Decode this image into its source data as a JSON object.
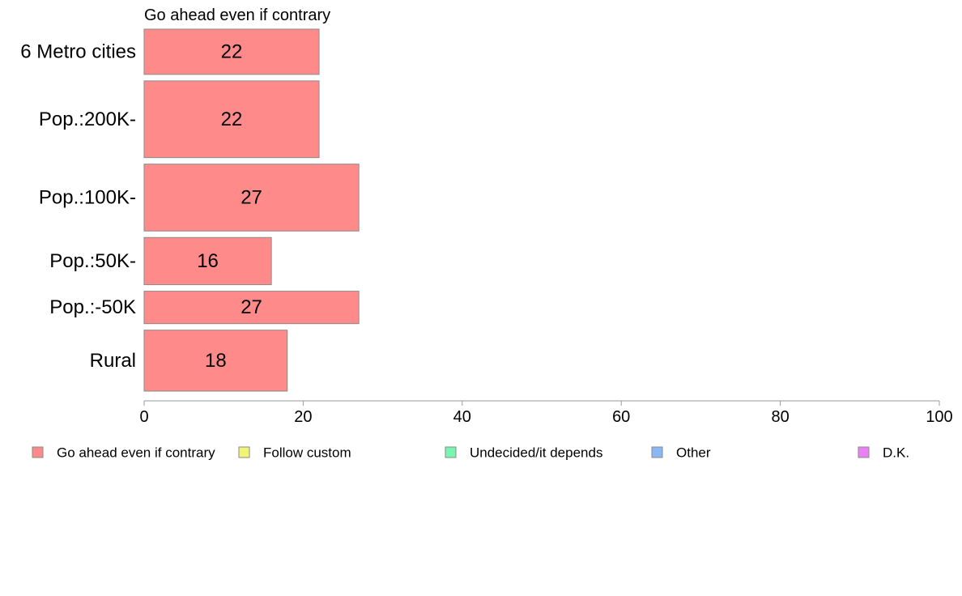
{
  "chart_data": {
    "type": "bar",
    "orientation": "horizontal",
    "title": "Go ahead even if contrary",
    "categories": [
      "6 Metro cities",
      "Pop.:200K-",
      "Pop.:100K-",
      "Pop.:50K-",
      "Pop.:-50K",
      "Rural"
    ],
    "series": [
      {
        "name": "Go ahead even if contrary",
        "color": "#ff8a8a",
        "values": [
          22,
          22,
          27,
          16,
          27,
          18
        ],
        "labels": [
          "22",
          "22",
          "27",
          "16",
          "27",
          "18"
        ]
      }
    ],
    "bar_share": [
      0.92,
      1.56,
      1.36,
      0.96,
      0.66,
      1.24
    ],
    "xlim": [
      0,
      100
    ],
    "xticks": [
      "0",
      "20",
      "40",
      "60",
      "80",
      "100"
    ],
    "grid": false,
    "legend_position": "bottom",
    "legend": [
      {
        "label": "Go ahead even if contrary",
        "color": "#ff8a8a"
      },
      {
        "label": "Follow custom",
        "color": "#f0f57a"
      },
      {
        "label": "Undecided/it depends",
        "color": "#7af5b0"
      },
      {
        "label": "Other",
        "color": "#8ab8f5"
      },
      {
        "label": "D.K.",
        "color": "#ea80f5"
      }
    ]
  }
}
